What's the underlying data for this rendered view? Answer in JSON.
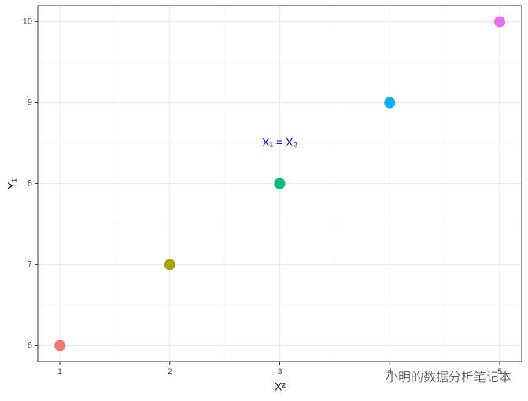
{
  "chart_data": {
    "type": "scatter",
    "x_label": "X²",
    "y_label": "Y₁",
    "x": [
      1,
      2,
      3,
      4,
      5
    ],
    "values": [
      6,
      7,
      8,
      9,
      10
    ],
    "colors": [
      "#F8766D",
      "#A3A500",
      "#00BF7D",
      "#00B0F6",
      "#E76BF3"
    ],
    "xlim": [
      0.8,
      5.2
    ],
    "ylim": [
      5.8,
      10.2
    ],
    "xticks": [
      1,
      2,
      3,
      4,
      5
    ],
    "yticks": [
      6,
      7,
      8,
      9,
      10
    ],
    "grid": true,
    "minor_grid": true,
    "annotation": {
      "text": "X₁ = X₂",
      "x": 3,
      "y": 8.5,
      "color": "#0000FF"
    },
    "watermark": "小明的数据分析笔记本"
  }
}
